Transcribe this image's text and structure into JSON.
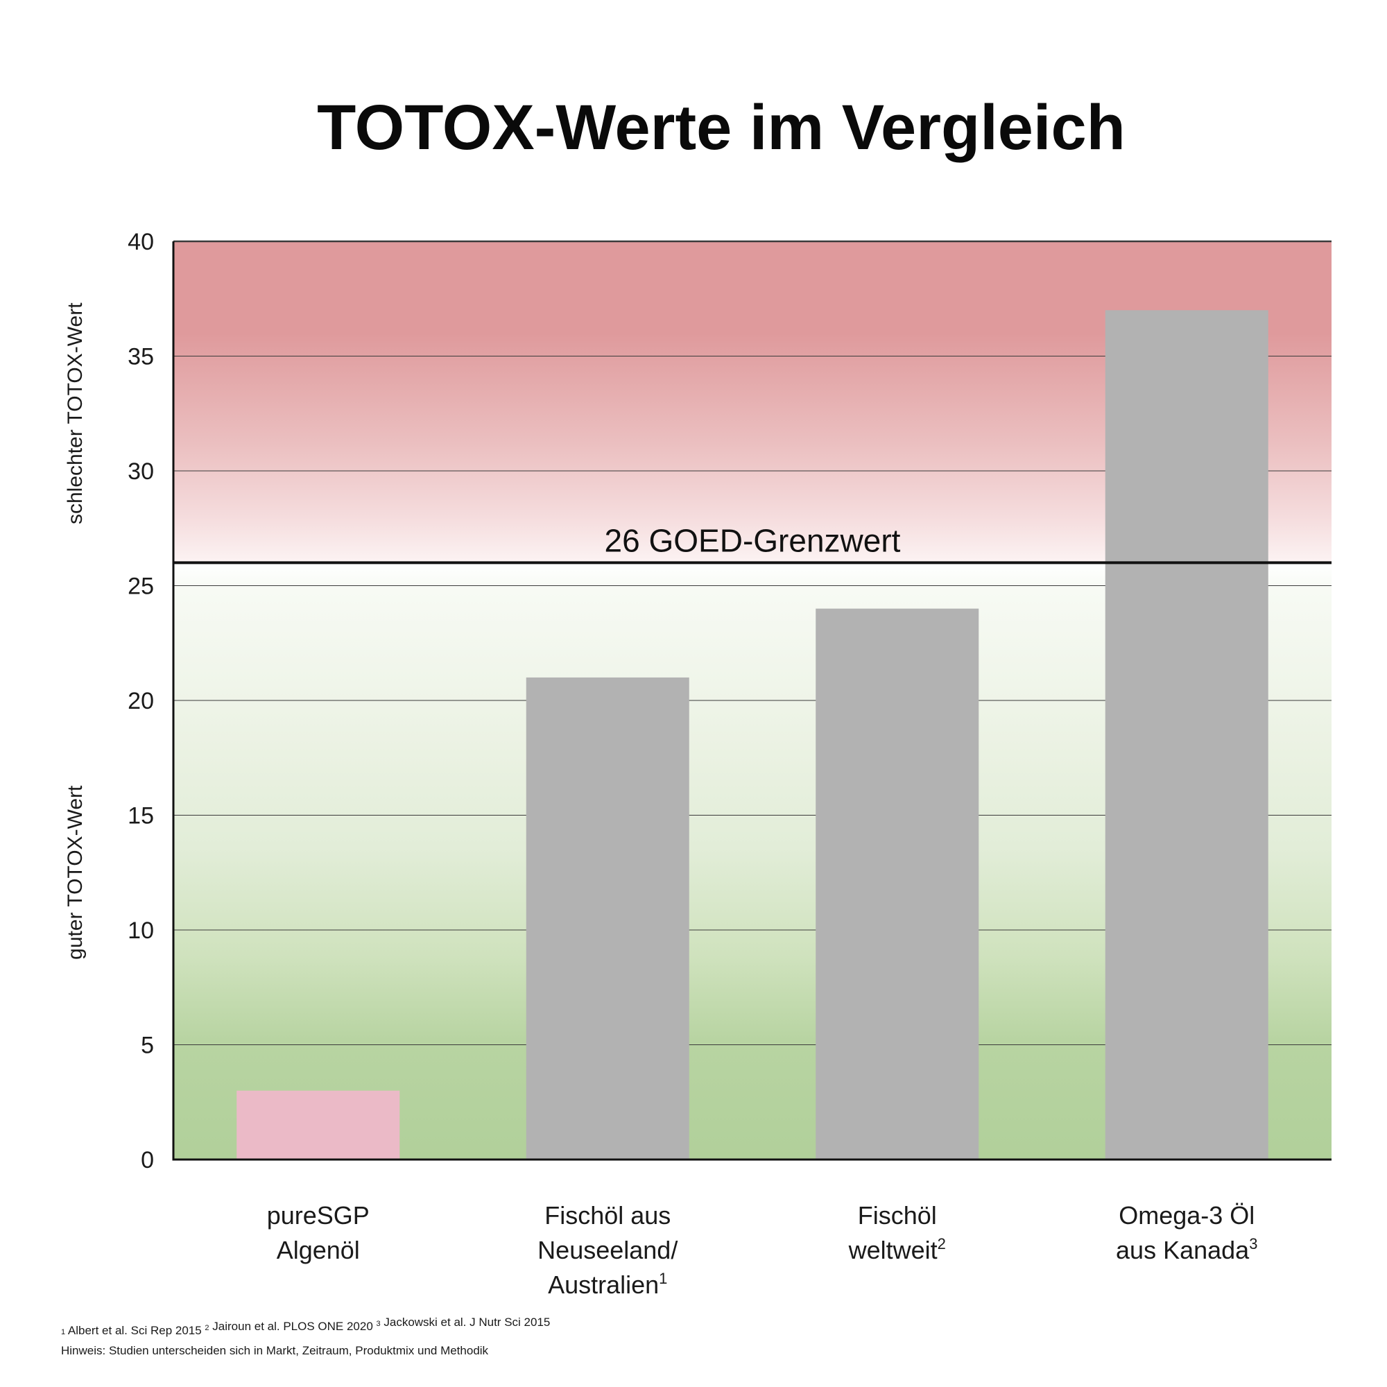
{
  "chart_data": {
    "type": "bar",
    "title": "TOTOX-Werte im Vergleich",
    "categories": [
      {
        "lines": [
          "pureSGP",
          "Algenöl"
        ],
        "sup": ""
      },
      {
        "lines": [
          "Fischöl aus",
          "Neuseeland/",
          "Australien"
        ],
        "sup": "1"
      },
      {
        "lines": [
          "Fischöl",
          "weltweit"
        ],
        "sup": "2"
      },
      {
        "lines": [
          "Omega-3 Öl",
          "aus Kanada"
        ],
        "sup": "3"
      }
    ],
    "values": [
      3,
      21,
      24,
      37
    ],
    "bar_colors": [
      "#ebbac7",
      "#b2b2b2",
      "#b2b2b2",
      "#b2b2b2"
    ],
    "ylim": [
      0,
      40
    ],
    "yticks": [
      0,
      5,
      10,
      15,
      20,
      25,
      30,
      35,
      40
    ],
    "grid": true,
    "y_side_labels": {
      "bad": "schlechter TOTOX-Wert",
      "good": "guter TOTOX-Wert"
    },
    "threshold": {
      "value": 26,
      "label": "26 GOED-Grenzwert"
    },
    "background_colors": {
      "bad": "#df9a9c",
      "good": "#b1d09a"
    },
    "footnotes": [
      {
        "parts": [
          {
            "sup": "1"
          },
          {
            "text": " Albert et al. Sci Rep 2015  "
          },
          {
            "sup": "2"
          },
          {
            "text": " Jairoun et al. PLOS ONE 2020  "
          },
          {
            "sup": "3"
          },
          {
            "text": " Jackowski et al. J Nutr Sci 2015"
          }
        ]
      },
      {
        "parts": [
          {
            "text": "Hinweis: Studien unterscheiden sich in Markt, Zeitraum, Produktmix und Methodik"
          }
        ]
      }
    ]
  }
}
